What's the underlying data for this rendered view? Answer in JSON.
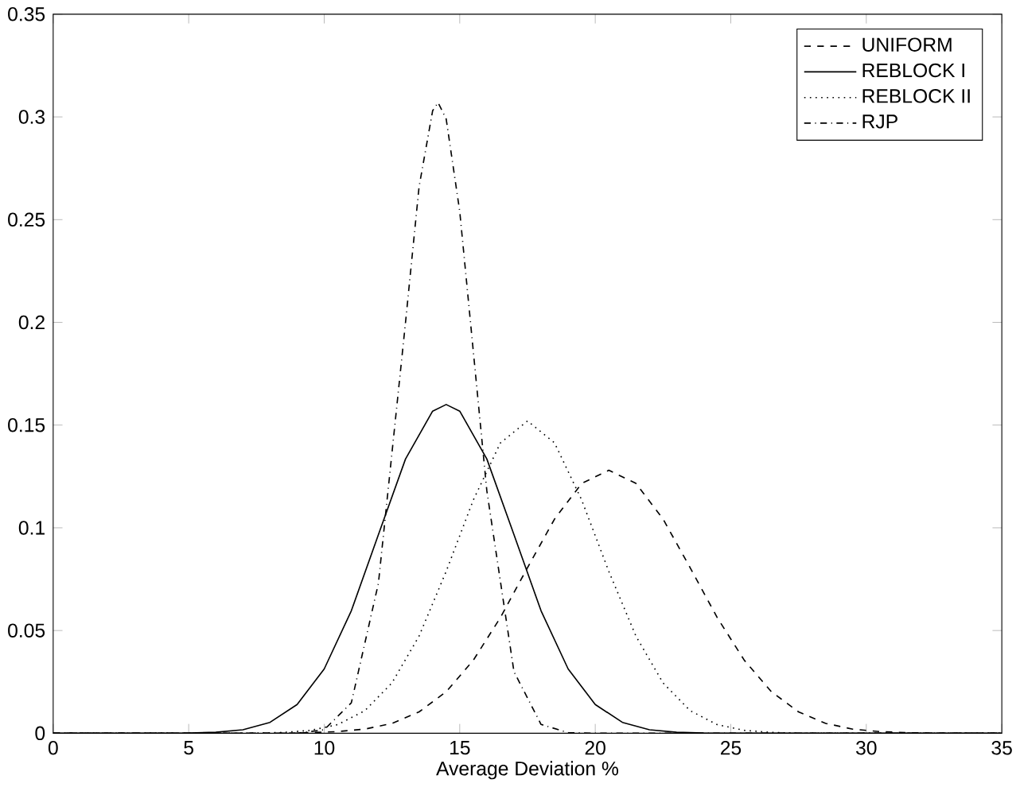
{
  "chart_data": {
    "type": "line",
    "xlabel": "Average Deviation %",
    "xlim": [
      0,
      35
    ],
    "ylim": [
      0,
      0.35
    ],
    "xticks": [
      0,
      5,
      10,
      15,
      20,
      25,
      30,
      35
    ],
    "yticks": [
      0,
      0.05,
      0.1,
      0.15,
      0.2,
      0.25,
      0.3,
      0.35
    ],
    "grid": false,
    "legend": "top right",
    "marker": "none",
    "series": [
      {
        "name": "UNIFORM",
        "color": "#000000",
        "line_style": "dashed",
        "x": [
          0,
          8.5,
          9.5,
          10.5,
          11.5,
          12.5,
          13.5,
          14.5,
          15.5,
          16.5,
          17.5,
          18.5,
          19.5,
          20.5,
          21.5,
          22.5,
          23.5,
          24.5,
          25.5,
          26.5,
          27.5,
          28.5,
          29.5,
          30.5,
          31.5,
          32.5,
          35
        ],
        "values": [
          0,
          0,
          0.0003,
          0.0008,
          0.002,
          0.0048,
          0.0104,
          0.0202,
          0.0355,
          0.0563,
          0.0806,
          0.1043,
          0.1216,
          0.128,
          0.1216,
          0.1043,
          0.0806,
          0.0563,
          0.0355,
          0.0202,
          0.0104,
          0.0048,
          0.002,
          0.0008,
          0.0003,
          0,
          0
        ]
      },
      {
        "name": "REBLOCK I",
        "color": "#000000",
        "line_style": "solid",
        "x": [
          0,
          4,
          5,
          6,
          7,
          8,
          9,
          10,
          11,
          12,
          13,
          14,
          14.5,
          15,
          16,
          17,
          18,
          19,
          20,
          21,
          22,
          23,
          24,
          25,
          35
        ],
        "values": [
          0,
          0,
          0.0001,
          0.0005,
          0.0017,
          0.0053,
          0.014,
          0.0313,
          0.0596,
          0.0967,
          0.1335,
          0.1568,
          0.16,
          0.1568,
          0.1335,
          0.0967,
          0.0596,
          0.0313,
          0.014,
          0.0053,
          0.0017,
          0.0005,
          0.0001,
          0,
          0
        ]
      },
      {
        "name": "REBLOCK II",
        "color": "#000000",
        "line_style": "dotted",
        "x": [
          0,
          7.5,
          8.5,
          9.5,
          10.5,
          11.5,
          12.5,
          13.5,
          14.5,
          15.5,
          16.5,
          17.5,
          18.5,
          19.5,
          20.5,
          21.5,
          22.5,
          23.5,
          24.5,
          25.5,
          26.5,
          27.5,
          35
        ],
        "values": [
          0,
          0,
          0.0004,
          0.0014,
          0.0042,
          0.011,
          0.0245,
          0.0473,
          0.0788,
          0.1135,
          0.1413,
          0.152,
          0.1413,
          0.1135,
          0.0788,
          0.0473,
          0.0245,
          0.011,
          0.0042,
          0.0014,
          0.0004,
          0,
          0
        ]
      },
      {
        "name": "RJP",
        "color": "#000000",
        "line_style": "dashdot",
        "x": [
          0,
          9,
          10,
          11,
          12,
          13,
          13.5,
          14,
          14.2,
          14.5,
          15,
          15.5,
          16,
          17,
          18,
          19,
          20,
          35
        ],
        "values": [
          0,
          0,
          0.0017,
          0.0148,
          0.073,
          0.2,
          0.266,
          0.303,
          0.307,
          0.299,
          0.254,
          0.186,
          0.118,
          0.03,
          0.0043,
          0.0003,
          0,
          0
        ]
      }
    ]
  }
}
